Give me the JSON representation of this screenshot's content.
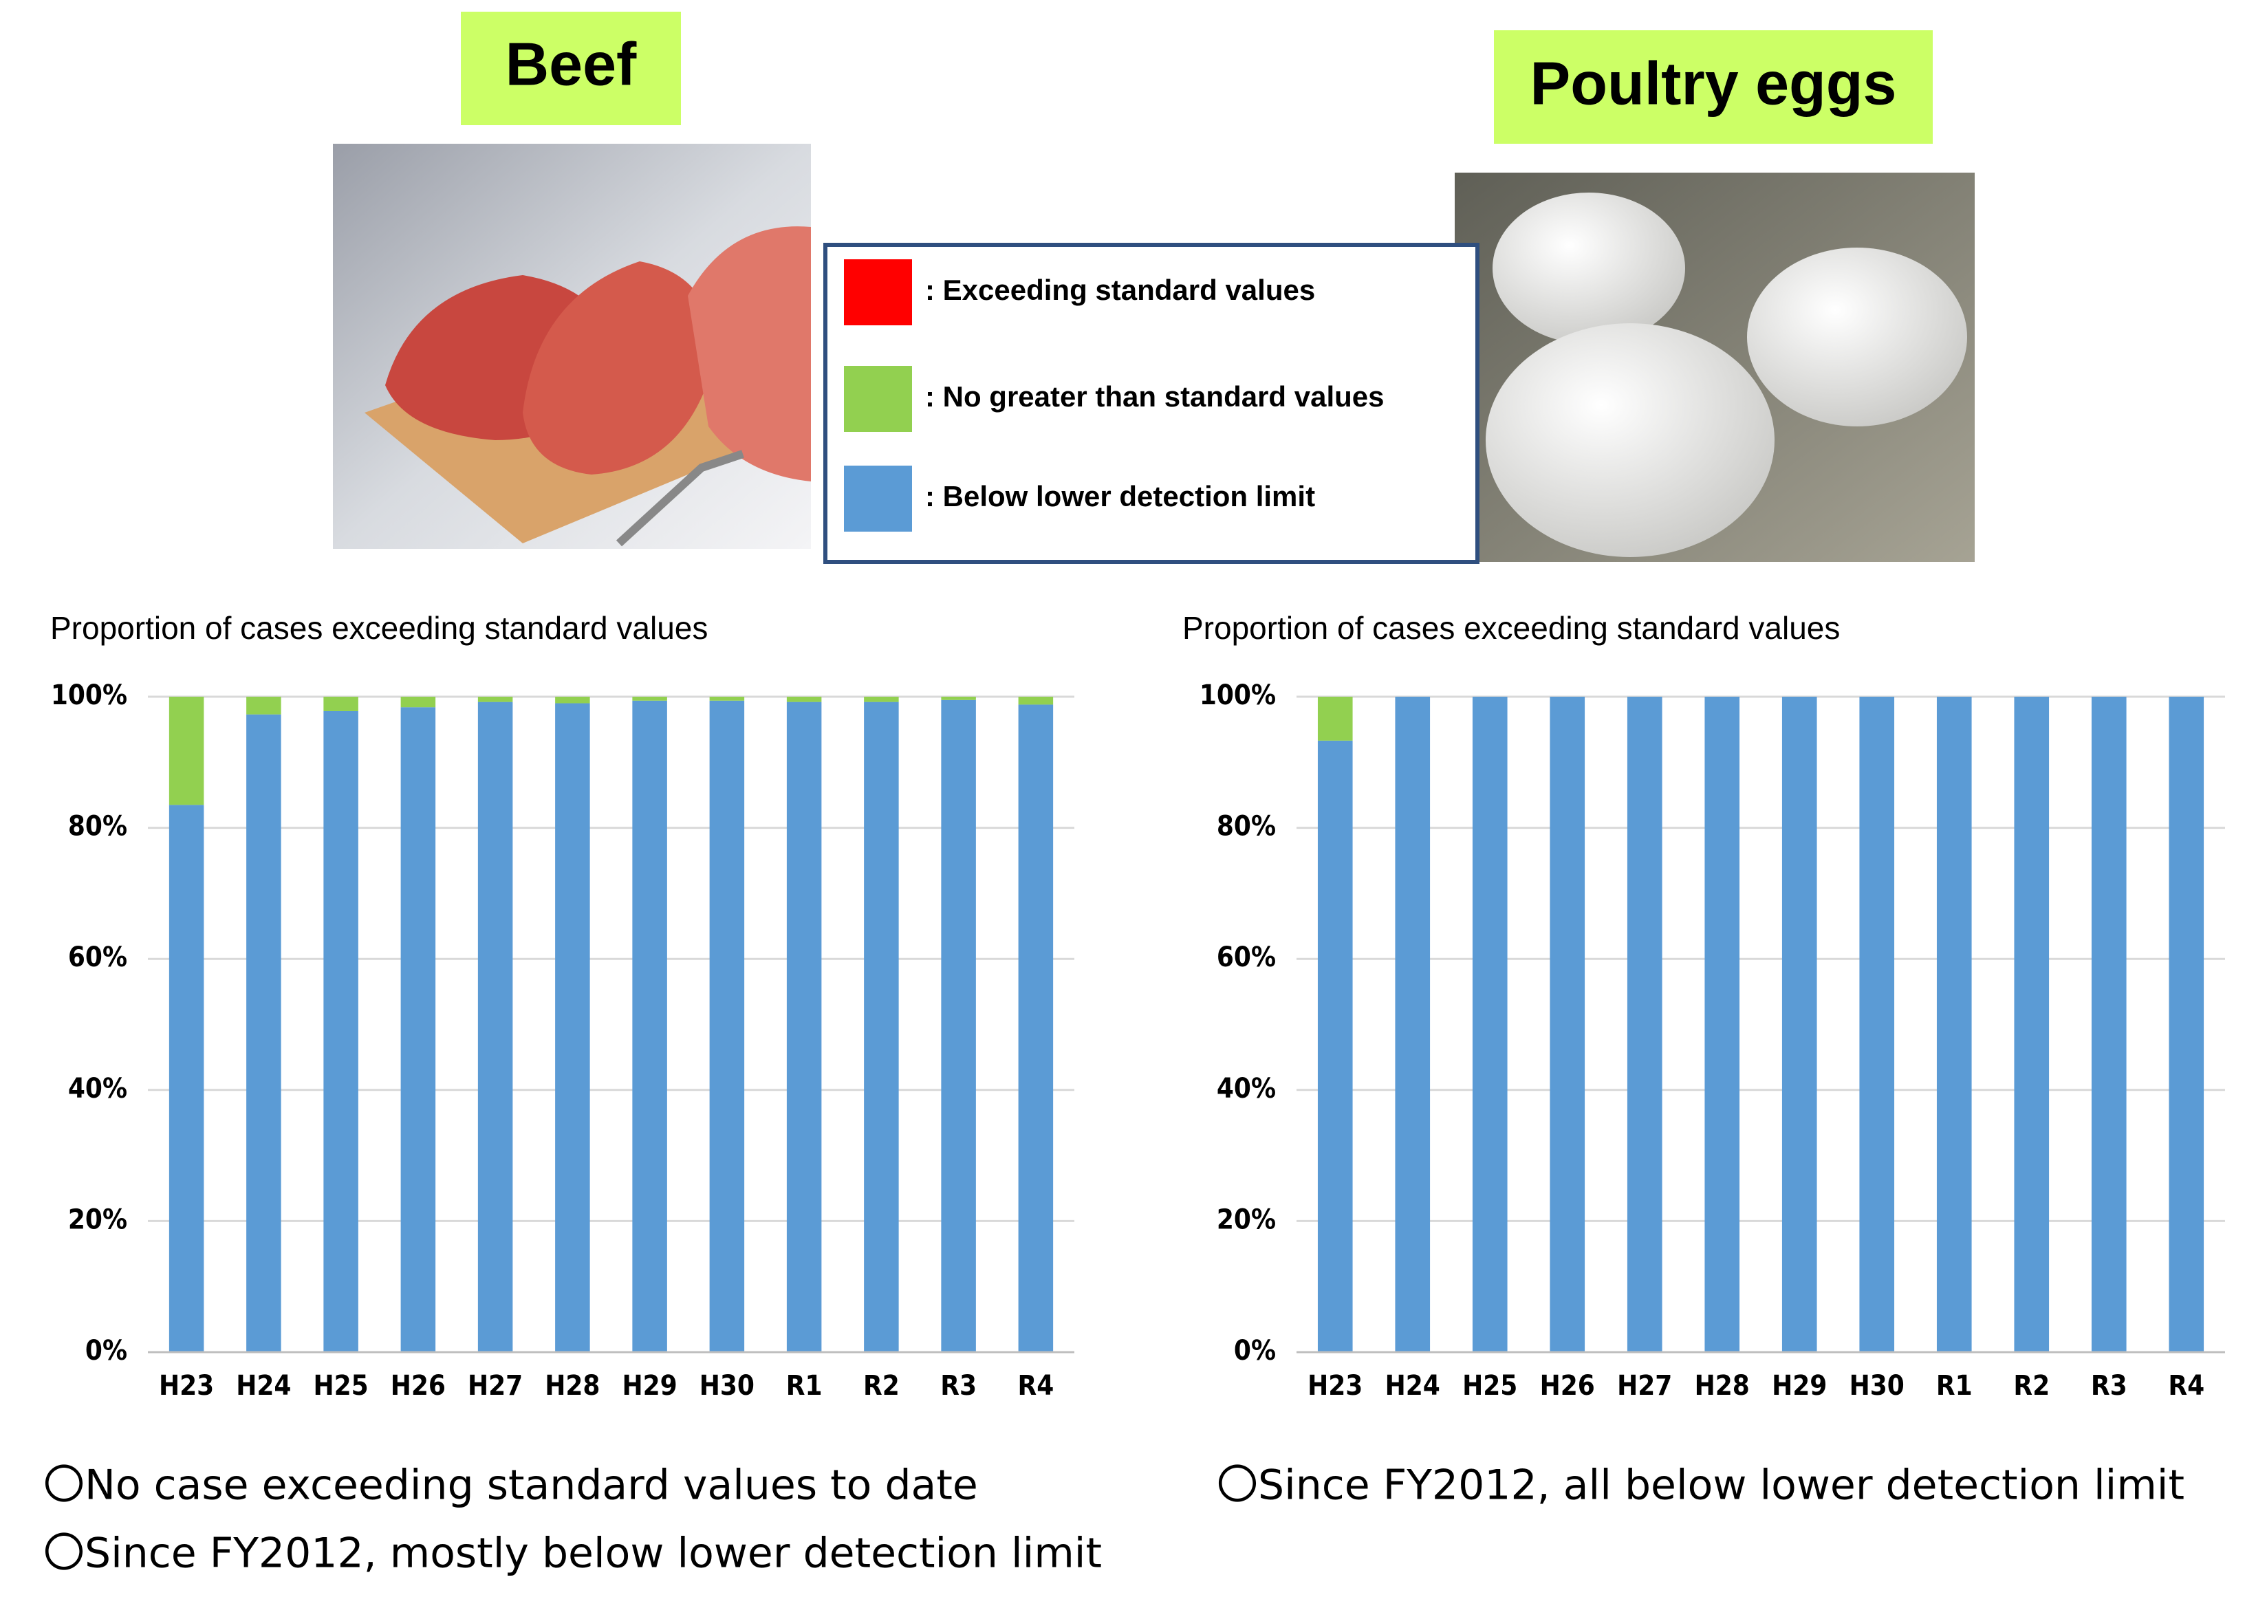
{
  "headers": [
    {
      "title": "Beef"
    },
    {
      "title": "Poultry eggs"
    }
  ],
  "legend": {
    "items": [
      {
        "name": ": Exceeding standard values",
        "color": "#ff0000"
      },
      {
        "name": ": No greater than standard values",
        "color": "#92d050"
      },
      {
        "name": ": Below lower detection limit",
        "color": "#5b9bd5"
      }
    ]
  },
  "chart_data": [
    {
      "type": "bar",
      "stacked": true,
      "title": "Proportion of cases exceeding standard values",
      "categories": [
        "H23",
        "H24",
        "H25",
        "H26",
        "H27",
        "H28",
        "H29",
        "H30",
        "R1",
        "R2",
        "R3",
        "R4"
      ],
      "series": [
        {
          "name": ": Below lower detection limit",
          "color": "#5b9bd5",
          "values": [
            83.5,
            97.3,
            97.8,
            98.4,
            99.2,
            99.0,
            99.4,
            99.4,
            99.2,
            99.2,
            99.5,
            98.8
          ]
        },
        {
          "name": ": No greater than standard values",
          "color": "#92d050",
          "values": [
            16.5,
            2.7,
            2.2,
            1.6,
            0.8,
            1.0,
            0.6,
            0.6,
            0.8,
            0.8,
            0.5,
            1.2
          ]
        }
      ],
      "ylim": [
        0,
        100
      ],
      "yticks": [
        {
          "value": 0,
          "label": "0%"
        },
        {
          "value": 20,
          "label": "20%"
        },
        {
          "value": 40,
          "label": "40%"
        },
        {
          "value": 60,
          "label": "60%"
        },
        {
          "value": 80,
          "label": "80%"
        },
        {
          "value": 100,
          "label": "100%"
        }
      ],
      "grid": true,
      "notes": [
        "〇No case exceeding standard values to date",
        "〇Since FY2012, mostly below lower detection limit"
      ]
    },
    {
      "type": "bar",
      "stacked": true,
      "title": "Proportion of cases exceeding standard values",
      "categories": [
        "H23",
        "H24",
        "H25",
        "H26",
        "H27",
        "H28",
        "H29",
        "H30",
        "R1",
        "R2",
        "R3",
        "R4"
      ],
      "series": [
        {
          "name": ": Below lower detection limit",
          "color": "#5b9bd5",
          "values": [
            93.3,
            100,
            100,
            100,
            100,
            100,
            100,
            100,
            100,
            100,
            100,
            100
          ]
        },
        {
          "name": ": No greater than standard values",
          "color": "#92d050",
          "values": [
            6.7,
            0,
            0,
            0,
            0,
            0,
            0,
            0,
            0,
            0,
            0,
            0
          ]
        }
      ],
      "ylim": [
        0,
        100
      ],
      "yticks": [
        {
          "value": 0,
          "label": "0%"
        },
        {
          "value": 20,
          "label": "20%"
        },
        {
          "value": 40,
          "label": "40%"
        },
        {
          "value": 60,
          "label": "60%"
        },
        {
          "value": 80,
          "label": "80%"
        },
        {
          "value": 100,
          "label": "100%"
        }
      ],
      "grid": true,
      "notes": [
        "〇Since FY2012, all below lower detection limit"
      ]
    }
  ]
}
